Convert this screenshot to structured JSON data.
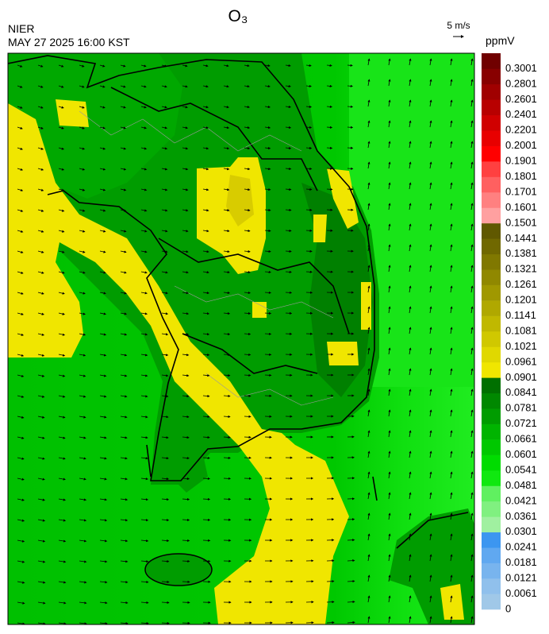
{
  "header": {
    "title": "O₃",
    "agency": "NIER",
    "timestamp": "MAY 27 2025 16:00 KST",
    "wind_reference": "5 m/s"
  },
  "colorbar": {
    "unit": "ppmV",
    "ticks": [
      0,
      0.0061,
      0.0121,
      0.0181,
      0.0241,
      0.0301,
      0.0361,
      0.0421,
      0.0481,
      0.0541,
      0.0601,
      0.0661,
      0.0721,
      0.0781,
      0.0841,
      0.0901,
      0.0961,
      0.1021,
      0.1081,
      0.1141,
      0.1201,
      0.1261,
      0.1321,
      0.1381,
      0.1441,
      0.1501,
      0.1601,
      0.1701,
      0.1801,
      0.1901,
      0.2001,
      0.2201,
      0.2401,
      0.2601,
      0.2801,
      0.3001
    ],
    "colors": [
      "#a0c8e8",
      "#90c0ec",
      "#78b4ee",
      "#60a8f0",
      "#3c96f0",
      "#a0f0a0",
      "#80f080",
      "#60f060",
      "#10e810",
      "#00dc00",
      "#00c800",
      "#00b400",
      "#009c00",
      "#008800",
      "#007000",
      "#f0e600",
      "#e0d800",
      "#d0c800",
      "#c0b800",
      "#b0a800",
      "#a09800",
      "#908800",
      "#807800",
      "#706800",
      "#605800",
      "#ffa0a0",
      "#ff8080",
      "#ff6060",
      "#ff4040",
      "#ff0000",
      "#e80000",
      "#d00000",
      "#b80000",
      "#a00000",
      "#880000",
      "#700000"
    ]
  }
}
